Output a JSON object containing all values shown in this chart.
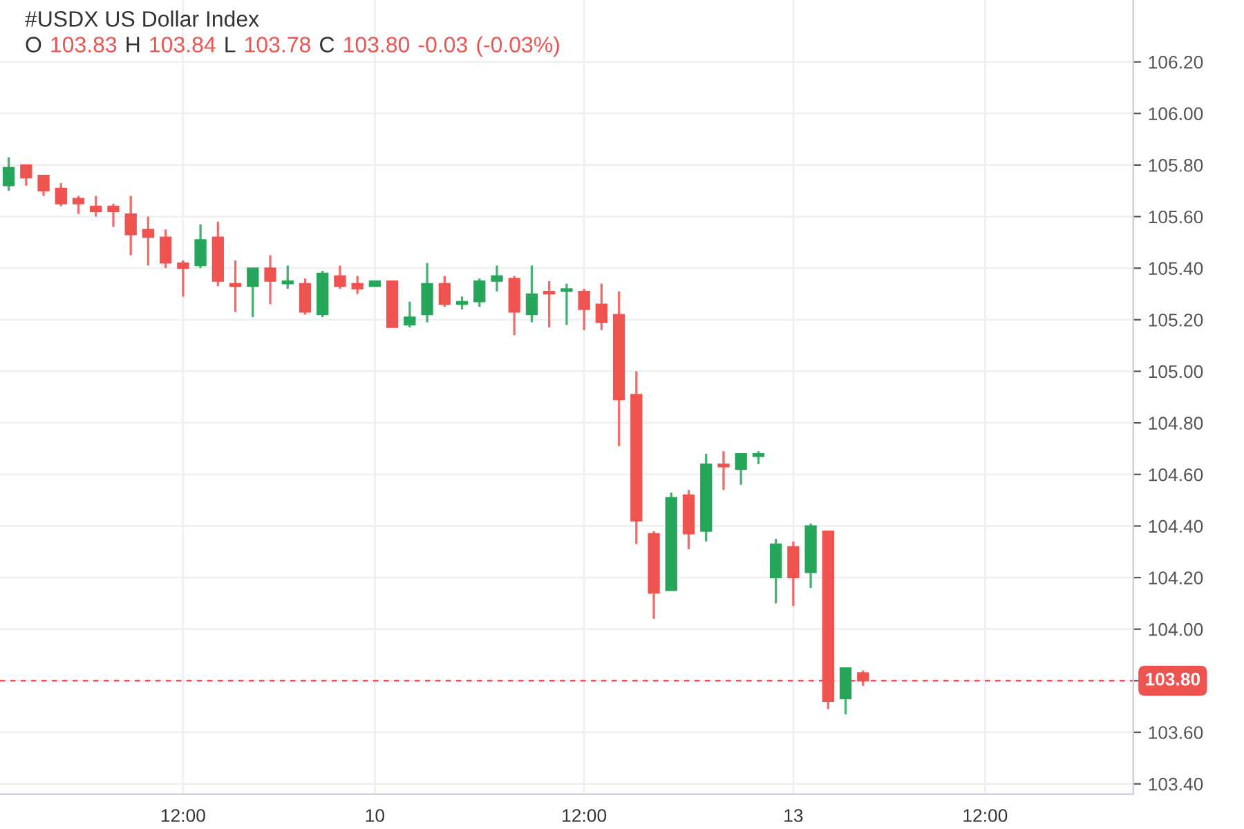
{
  "chart_data": {
    "type": "candlestick",
    "title": "#USDX US Dollar Index",
    "subtitle": "O 103.83 H 103.84 L 103.78 C 103.80  -0.03 (-0.03%)",
    "categories": [
      null,
      null,
      null,
      null,
      null,
      null,
      null,
      null,
      null,
      null,
      "12:00",
      null,
      null,
      null,
      null,
      null,
      null,
      null,
      null,
      null,
      null,
      "10",
      null,
      null,
      null,
      null,
      null,
      null,
      null,
      null,
      null,
      null,
      null,
      "12:00",
      null,
      null,
      null,
      null,
      null,
      null,
      null,
      null,
      null,
      null,
      null,
      "13",
      null,
      null,
      null,
      null,
      null,
      null,
      null,
      null,
      null,
      null,
      "12:00",
      null,
      null,
      null,
      null,
      null,
      null,
      null,
      null
    ],
    "ohlc": [
      [
        105.72,
        105.83,
        105.7,
        105.79
      ],
      [
        105.8,
        105.8,
        105.72,
        105.75
      ],
      [
        105.76,
        105.76,
        105.68,
        105.7
      ],
      [
        105.71,
        105.73,
        105.64,
        105.65
      ],
      [
        105.67,
        105.68,
        105.61,
        105.65
      ],
      [
        105.64,
        105.68,
        105.6,
        105.62
      ],
      [
        105.64,
        105.65,
        105.56,
        105.62
      ],
      [
        105.61,
        105.68,
        105.45,
        105.53
      ],
      [
        105.55,
        105.6,
        105.41,
        105.52
      ],
      [
        105.52,
        105.55,
        105.4,
        105.42
      ],
      [
        105.42,
        105.43,
        105.29,
        105.4
      ],
      [
        105.41,
        105.57,
        105.4,
        105.51
      ],
      [
        105.52,
        105.58,
        105.33,
        105.35
      ],
      [
        105.34,
        105.43,
        105.23,
        105.33
      ],
      [
        105.33,
        105.4,
        105.21,
        105.4
      ],
      [
        105.4,
        105.45,
        105.26,
        105.35
      ],
      [
        105.34,
        105.41,
        105.32,
        105.35
      ],
      [
        105.34,
        105.36,
        105.22,
        105.23
      ],
      [
        105.22,
        105.39,
        105.21,
        105.38
      ],
      [
        105.37,
        105.41,
        105.32,
        105.33
      ],
      [
        105.34,
        105.37,
        105.3,
        105.32
      ],
      [
        105.33,
        105.35,
        105.33,
        105.35
      ],
      [
        105.35,
        105.35,
        105.17,
        105.17
      ],
      [
        105.18,
        105.27,
        105.17,
        105.21
      ],
      [
        105.22,
        105.42,
        105.19,
        105.34
      ],
      [
        105.34,
        105.37,
        105.25,
        105.26
      ],
      [
        105.26,
        105.29,
        105.24,
        105.27
      ],
      [
        105.27,
        105.36,
        105.25,
        105.35
      ],
      [
        105.35,
        105.41,
        105.31,
        105.37
      ],
      [
        105.36,
        105.37,
        105.14,
        105.23
      ],
      [
        105.22,
        105.41,
        105.19,
        105.3
      ],
      [
        105.31,
        105.35,
        105.17,
        105.3
      ],
      [
        105.31,
        105.34,
        105.18,
        105.32
      ],
      [
        105.31,
        105.32,
        105.16,
        105.24
      ],
      [
        105.26,
        105.34,
        105.16,
        105.19
      ],
      [
        105.22,
        105.31,
        104.71,
        104.89
      ],
      [
        104.91,
        105.0,
        104.33,
        104.42
      ],
      [
        104.37,
        104.38,
        104.04,
        104.14
      ],
      [
        104.15,
        104.53,
        104.15,
        104.51
      ],
      [
        104.52,
        104.54,
        104.31,
        104.37
      ],
      [
        104.38,
        104.68,
        104.34,
        104.64
      ],
      [
        104.64,
        104.69,
        104.54,
        104.63
      ],
      [
        104.62,
        104.68,
        104.56,
        104.68
      ],
      [
        104.67,
        104.69,
        104.64,
        104.68
      ],
      [
        104.2,
        104.35,
        104.1,
        104.33
      ],
      [
        104.32,
        104.34,
        104.09,
        104.2
      ],
      [
        104.22,
        104.41,
        104.16,
        104.4
      ],
      [
        104.38,
        104.38,
        103.69,
        103.72
      ],
      [
        103.73,
        103.85,
        103.67,
        103.85
      ],
      [
        103.83,
        103.84,
        103.78,
        103.8
      ],
      null,
      null,
      null,
      null,
      null,
      null,
      null,
      null,
      null,
      null,
      null,
      null,
      null,
      null,
      null
    ],
    "colors": [
      "#26a65b",
      "#ef5350",
      "#ef5350",
      "#ef5350",
      "#ef5350",
      "#ef5350",
      "#ef5350",
      "#ef5350",
      "#ef5350",
      "#ef5350",
      "#ef5350",
      "#26a65b",
      "#ef5350",
      "#ef5350",
      "#26a65b",
      "#ef5350",
      "#26a65b",
      "#ef5350",
      "#26a65b",
      "#ef5350",
      "#ef5350",
      "#26a65b",
      "#ef5350",
      "#26a65b",
      "#26a65b",
      "#ef5350",
      "#26a65b",
      "#26a65b",
      "#26a65b",
      "#ef5350",
      "#26a65b",
      "#ef5350",
      "#26a65b",
      "#ef5350",
      "#ef5350",
      "#ef5350",
      "#ef5350",
      "#ef5350",
      "#26a65b",
      "#ef5350",
      "#26a65b",
      "#ef5350",
      "#26a65b",
      "#26a65b",
      "#26a65b",
      "#ef5350",
      "#26a65b",
      "#ef5350",
      "#26a65b",
      "#ef5350",
      null,
      null,
      null,
      null,
      null,
      null,
      null,
      null,
      null,
      null,
      null,
      null,
      null,
      null,
      null
    ],
    "ylim": [
      103.36,
      106.44
    ],
    "yticks": [
      {
        "value": 103.4,
        "label": "103.40"
      },
      {
        "value": 103.6,
        "label": "103.60"
      },
      {
        "value": 103.8,
        "label": null
      },
      {
        "value": 104.0,
        "label": "104.00"
      },
      {
        "value": 104.2,
        "label": "104.20"
      },
      {
        "value": 104.4,
        "label": "104.40"
      },
      {
        "value": 104.6,
        "label": "104.60"
      },
      {
        "value": 104.8,
        "label": "104.80"
      },
      {
        "value": 105.0,
        "label": "105.00"
      },
      {
        "value": 105.2,
        "label": "105.20"
      },
      {
        "value": 105.4,
        "label": "105.40"
      },
      {
        "value": 105.6,
        "label": "105.60"
      },
      {
        "value": 105.8,
        "label": "105.80"
      },
      {
        "value": 106.0,
        "label": "106.00"
      },
      {
        "value": 106.2,
        "label": "106.20"
      }
    ],
    "ref_lines": [
      {
        "axis": "y",
        "value": 103.8,
        "label": "103.80",
        "color": "#ef5350",
        "line_style": "dashed"
      }
    ],
    "grid": true
  }
}
